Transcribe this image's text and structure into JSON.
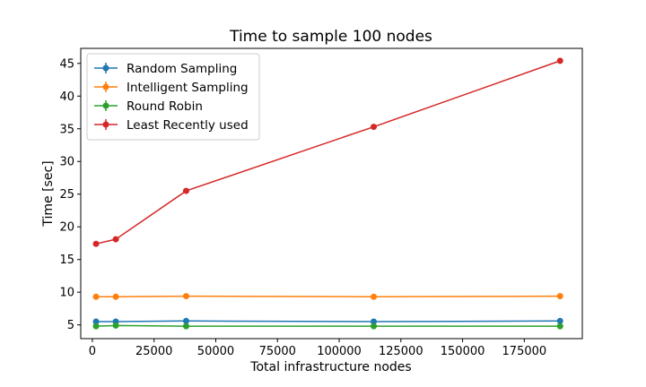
{
  "chart_data": {
    "type": "line",
    "title": "Time to sample 100 nodes",
    "xlabel": "Total infrastructure nodes",
    "ylabel": "Time [sec]",
    "xlim": [
      -4700,
      198500
    ],
    "ylim": [
      2.9,
      47.3
    ],
    "xticks": [
      0,
      25000,
      50000,
      75000,
      100000,
      125000,
      150000,
      175000
    ],
    "yticks": [
      5,
      10,
      15,
      20,
      25,
      30,
      35,
      40,
      45
    ],
    "x": [
      1500,
      9500,
      38000,
      114000,
      189500
    ],
    "legend_position": "upper-left",
    "series": [
      {
        "name": "Random Sampling",
        "color": "#1f77b4",
        "values": [
          5.5,
          5.5,
          5.6,
          5.5,
          5.6
        ]
      },
      {
        "name": "Intelligent Sampling",
        "color": "#ff7f0e",
        "values": [
          9.3,
          9.3,
          9.4,
          9.3,
          9.4
        ]
      },
      {
        "name": "Round Robin",
        "color": "#2ca02c",
        "values": [
          4.8,
          4.9,
          4.8,
          4.8,
          4.8
        ]
      },
      {
        "name": "Least Recently used",
        "color": "#d62728",
        "values": [
          17.4,
          18.1,
          25.5,
          35.3,
          45.4
        ]
      }
    ]
  }
}
